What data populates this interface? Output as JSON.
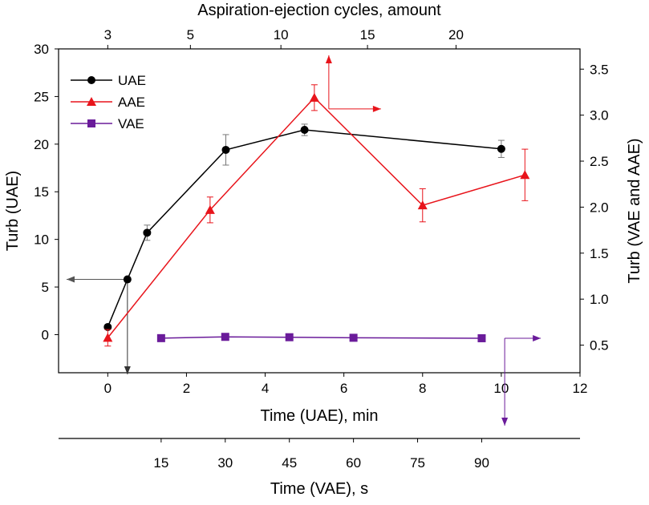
{
  "chart_data": {
    "type": "line",
    "top_axis": {
      "label": "Aspiration-ejection cycles, amount",
      "ticks": [
        {
          "label": "3",
          "at_time_min": 0
        },
        {
          "label": "5",
          "at_time_min": 2.1
        },
        {
          "label": "10",
          "at_time_min": 4.4
        },
        {
          "label": "15",
          "at_time_min": 6.6
        },
        {
          "label": "20",
          "at_time_min": 8.85
        }
      ]
    },
    "x_axis": {
      "label": "Time (UAE), min",
      "range": [
        -1.25,
        12
      ],
      "ticks": [
        0,
        2,
        4,
        6,
        8,
        10,
        12
      ]
    },
    "x2_axis": {
      "label": "Time (VAE), s",
      "range": [
        -9,
        113
      ],
      "ticks": [
        15,
        30,
        45,
        60,
        75,
        90
      ]
    },
    "y_left": {
      "label": "Turb (UAE)",
      "range": [
        -4,
        30
      ],
      "ticks": [
        0,
        5,
        10,
        15,
        20,
        25,
        30
      ]
    },
    "y_right": {
      "label": "Turb (VAE and AAE)",
      "range": [
        0.2,
        3.72
      ],
      "ticks": [
        0.5,
        1.0,
        1.5,
        2.0,
        2.5,
        3.0,
        3.5
      ],
      "tick_labels": [
        "0.5",
        "1.0",
        "1.5",
        "2.0",
        "2.5",
        "3.0",
        "3.5"
      ]
    },
    "legend": {
      "position": "top-left",
      "entries": [
        {
          "name": "UAE",
          "color": "#000000",
          "marker": "circle"
        },
        {
          "name": "AAE",
          "color": "#e8141b",
          "marker": "triangle"
        },
        {
          "name": "VAE",
          "color": "#6a1b9a",
          "marker": "square"
        }
      ]
    },
    "series": [
      {
        "name": "UAE",
        "color": "#000000",
        "marker": "circle",
        "x_axis": "x_axis",
        "y_axis": "y_left",
        "points": [
          {
            "x": 0,
            "y": 0.8,
            "err": 0
          },
          {
            "x": 0.5,
            "y": 5.8,
            "err": 0
          },
          {
            "x": 1,
            "y": 10.7,
            "err": 0.8
          },
          {
            "x": 3,
            "y": 19.4,
            "err": 1.6
          },
          {
            "x": 5,
            "y": 21.5,
            "err": 0.6
          },
          {
            "x": 10,
            "y": 19.5,
            "err": 0.9
          }
        ]
      },
      {
        "name": "AAE",
        "color": "#e8141b",
        "marker": "triangle",
        "x_axis": "x_axis",
        "y_axis": "y_right",
        "points": [
          {
            "x": 0,
            "y": 0.58,
            "err": 0.09
          },
          {
            "x": 2.6,
            "y": 1.97,
            "err": 0.14
          },
          {
            "x": 5.25,
            "y": 3.19,
            "err": 0.14
          },
          {
            "x": 8,
            "y": 2.02,
            "err": 0.18
          },
          {
            "x": 10.6,
            "y": 2.35,
            "err": 0.28
          }
        ]
      },
      {
        "name": "VAE",
        "color": "#6a1b9a",
        "marker": "square",
        "x_axis": "x2_axis",
        "y_axis": "y_right",
        "points": [
          {
            "x": 15,
            "y": 0.576
          },
          {
            "x": 30,
            "y": 0.59
          },
          {
            "x": 45,
            "y": 0.586
          },
          {
            "x": 60,
            "y": 0.58
          },
          {
            "x": 90,
            "y": 0.575
          }
        ]
      }
    ],
    "annotations": [
      {
        "type": "arrow",
        "color": "#000000",
        "meaning": "UAE series uses left y-axis (Turb) and bottom time axis (min)"
      },
      {
        "type": "arrow",
        "color": "#e8141b",
        "meaning": "AAE series uses right y-axis and top axis (cycles)"
      },
      {
        "type": "arrow",
        "color": "#6a1b9a",
        "meaning": "VAE series uses right y-axis and lower time axis (s)"
      }
    ]
  }
}
